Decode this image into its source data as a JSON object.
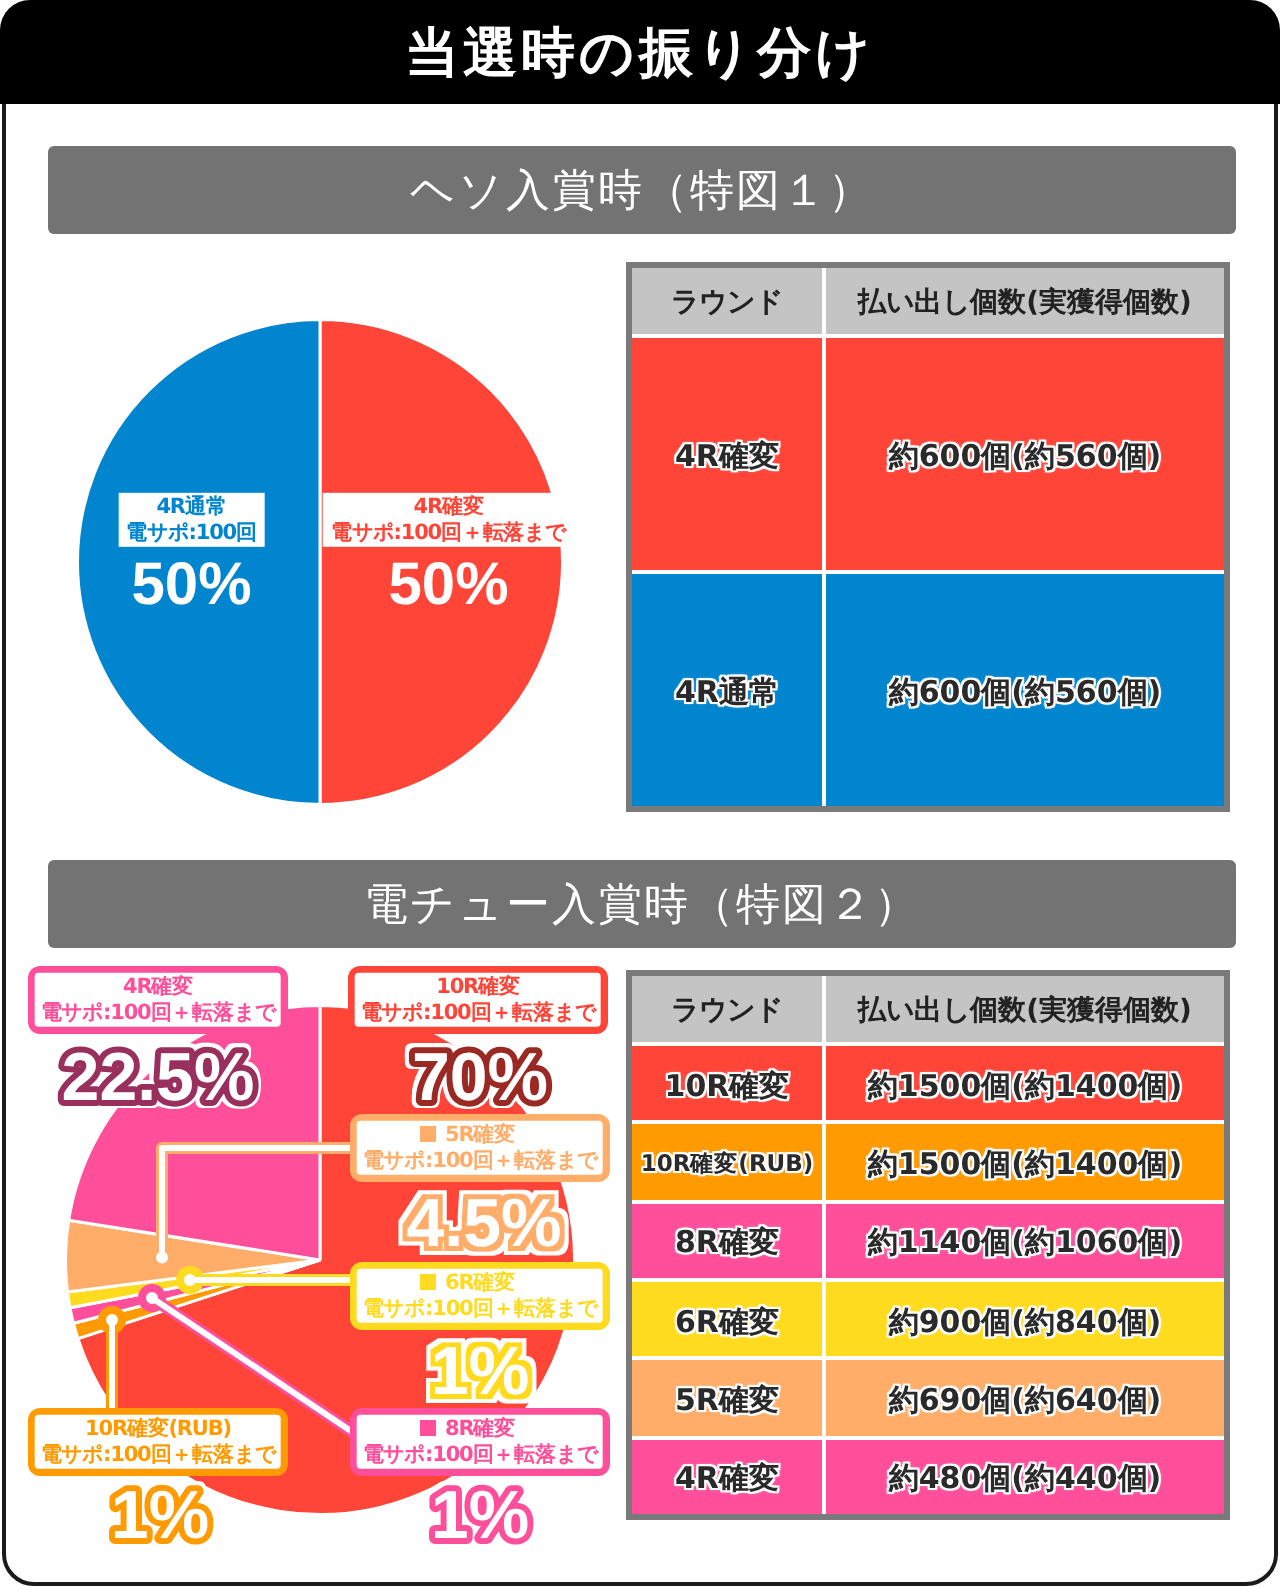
{
  "chart_data": [
    {
      "type": "pie",
      "title": "当選時の振り分け",
      "subtitle": "ヘソ入賞時（特図１）",
      "categories": [
        "4R確変",
        "4R通常"
      ],
      "annotations": [
        "電サポ:100回＋転落まで",
        "電サポ:100回"
      ],
      "values": [
        50,
        50
      ],
      "colors": [
        "#ff4438",
        "#0085ce"
      ],
      "value_labels": [
        "50%",
        "50%"
      ]
    },
    {
      "type": "other",
      "annotations": [
        "ラウンド",
        "払い出し個数(実獲得個数)"
      ],
      "categories": [
        "4R確変",
        "4R通常"
      ],
      "value_labels": [
        "約600個(約560個)",
        "約600個(約560個)"
      ],
      "colors": [
        "#ff4438",
        "#0085ce"
      ]
    },
    {
      "type": "pie",
      "title": "電チュー入賞時（特図２）",
      "categories": [
        "10R確変",
        "10R確変(RUB)",
        "8R確変",
        "6R確変",
        "5R確変",
        "4R確変"
      ],
      "annotations": [
        "電サポ:100回＋転落まで",
        "電サポ:100回＋転落まで",
        "電サポ:100回＋転落まで",
        "電サポ:100回＋転落まで",
        "電サポ:100回＋転落まで",
        "電サポ:100回＋転落まで"
      ],
      "values": [
        70,
        1,
        1,
        1,
        4.5,
        22.5
      ],
      "colors": [
        "#ff4438",
        "#ff9a00",
        "#ff4f9b",
        "#ffdb1f",
        "#ffad68",
        "#ff4f9b"
      ],
      "value_labels": [
        "70%",
        "1%",
        "1%",
        "1%",
        "4.5%",
        "22.5%"
      ],
      "legend": "right"
    },
    {
      "type": "other",
      "annotations": [
        "ラウンド",
        "払い出し個数(実獲得個数)"
      ],
      "categories": [
        "10R確変",
        "10R確変(RUB)",
        "8R確変",
        "6R確変",
        "5R確変",
        "4R確変"
      ],
      "value_labels": [
        "約1500個(約1400個)",
        "約1500個(約1400個)",
        "約1140個(約1060個)",
        "約900個(約840個)",
        "約690個(約640個)",
        "約480個(約440個)"
      ],
      "colors": [
        "#ff4438",
        "#ff9a00",
        "#ff4f9b",
        "#ffdb1f",
        "#ffad68",
        "#ff4f9b"
      ]
    }
  ]
}
